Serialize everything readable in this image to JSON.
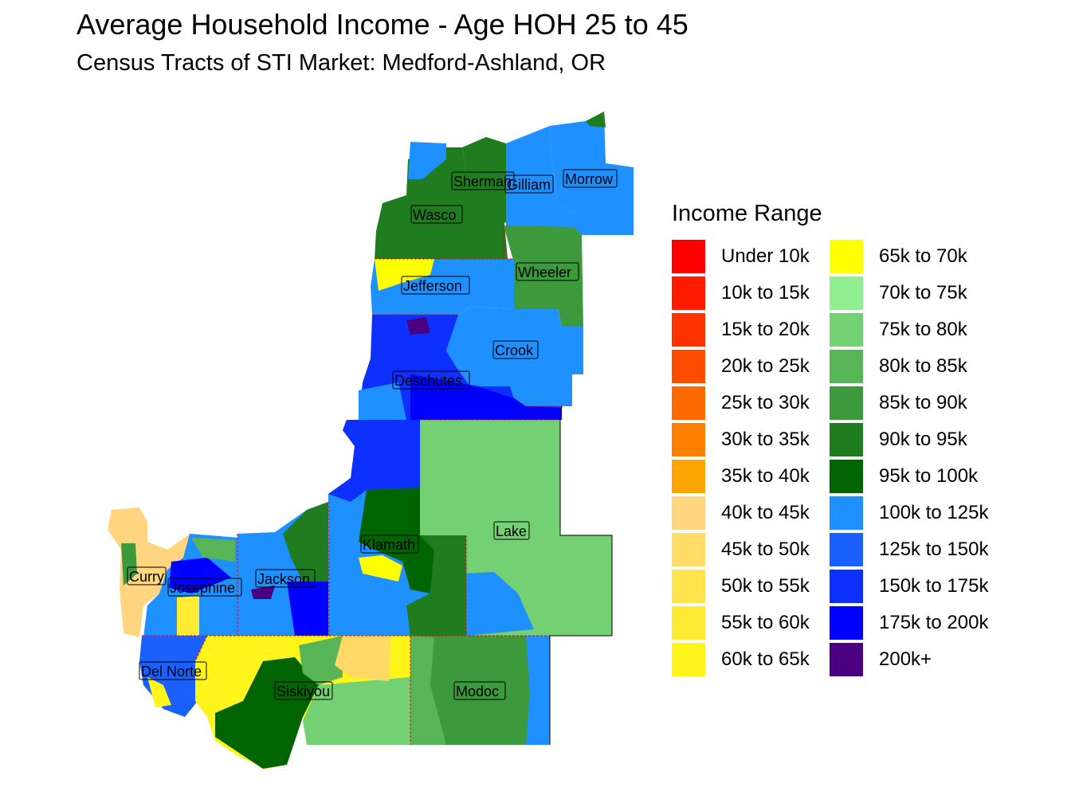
{
  "title": "Average Household Income - Age HOH 25 to 45",
  "subtitle": "Census Tracts of STI Market: Medford-Ashland, OR",
  "legend": {
    "title": "Income Range",
    "items": [
      {
        "label": "Under 10k",
        "color": "#ff0000"
      },
      {
        "label": "10k to 15k",
        "color": "#ff1a00"
      },
      {
        "label": "15k to 20k",
        "color": "#ff3300"
      },
      {
        "label": "20k to 25k",
        "color": "#ff4d00"
      },
      {
        "label": "25k to 30k",
        "color": "#ff6a00"
      },
      {
        "label": "30k to 35k",
        "color": "#ff8000"
      },
      {
        "label": "35k to 40k",
        "color": "#ffa500"
      },
      {
        "label": "40k to 45k",
        "color": "#ffd580"
      },
      {
        "label": "45k to 50k",
        "color": "#ffdd66"
      },
      {
        "label": "50k to 55k",
        "color": "#ffe44d"
      },
      {
        "label": "55k to 60k",
        "color": "#ffeb33"
      },
      {
        "label": "60k to 65k",
        "color": "#fff51a"
      },
      {
        "label": "65k to 70k",
        "color": "#ffff00"
      },
      {
        "label": "70k to 75k",
        "color": "#90ee90"
      },
      {
        "label": "75k to 80k",
        "color": "#73d073"
      },
      {
        "label": "80k to 85k",
        "color": "#57b557"
      },
      {
        "label": "85k to 90k",
        "color": "#3c993c"
      },
      {
        "label": "90k to 95k",
        "color": "#1f7c1f"
      },
      {
        "label": "95k to 100k",
        "color": "#006400"
      },
      {
        "label": "100k to 125k",
        "color": "#1e90ff"
      },
      {
        "label": "125k to 150k",
        "color": "#1a60ff"
      },
      {
        "label": "150k to 175k",
        "color": "#0d30ff"
      },
      {
        "label": "175k to 200k",
        "color": "#0000ff"
      },
      {
        "label": "200k+",
        "color": "#4b0082"
      }
    ]
  },
  "counties": [
    "Sherman",
    "Gilliam",
    "Morrow",
    "Wasco",
    "Wheeler",
    "Jefferson",
    "Crook",
    "Deschutes",
    "Klamath",
    "Lake",
    "Curry",
    "Josephine",
    "Jackson",
    "Del Norte",
    "Siskiyou",
    "Modoc"
  ]
}
